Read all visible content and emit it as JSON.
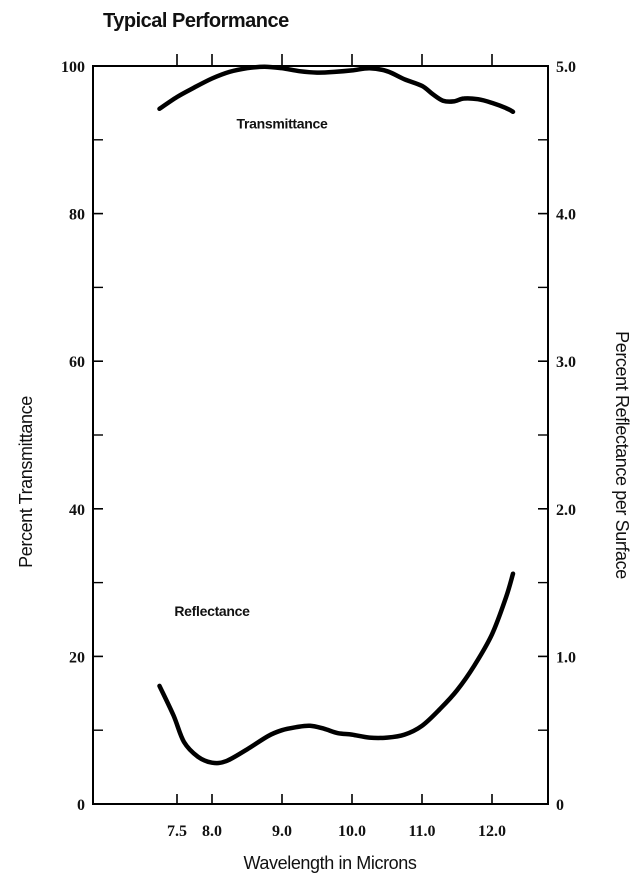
{
  "chart_data": {
    "type": "line",
    "title": "Typical Performance",
    "xlabel": "Wavelength in Microns",
    "ylabel": "Percent Transmittance",
    "y2label": "Percent Reflectance per Surface",
    "xlim": [
      7.2,
      12.35
    ],
    "ylim": [
      0,
      100
    ],
    "y2lim": [
      0,
      5.0
    ],
    "x_ticks": [
      7.5,
      8.0,
      9.0,
      10.0,
      11.0,
      12.0
    ],
    "x_tick_labels": [
      "7.5",
      "8.0",
      "9.0",
      "10.0",
      "11.0",
      "12.0"
    ],
    "y_ticks": [
      0,
      20,
      40,
      60,
      80,
      100
    ],
    "y_tick_labels": [
      "0",
      "20",
      "40",
      "60",
      "80",
      "100"
    ],
    "y2_ticks": [
      0,
      1.0,
      2.0,
      3.0,
      4.0,
      5.0
    ],
    "y2_tick_labels": [
      "0",
      "1.0",
      "2.0",
      "3.0",
      "4.0",
      "5.0"
    ],
    "grid": false,
    "legend": "none",
    "series": [
      {
        "name": "Transmittance",
        "axis": "left",
        "color": "#000000",
        "x": [
          7.25,
          7.5,
          7.75,
          8.0,
          8.25,
          8.5,
          8.75,
          9.0,
          9.25,
          9.5,
          9.75,
          10.0,
          10.25,
          10.5,
          10.75,
          11.0,
          11.15,
          11.3,
          11.45,
          11.6,
          11.8,
          12.0,
          12.2,
          12.3
        ],
        "y": [
          94.2,
          95.8,
          97.1,
          98.3,
          99.2,
          99.7,
          99.9,
          99.7,
          99.3,
          99.1,
          99.2,
          99.4,
          99.7,
          99.3,
          98.2,
          97.3,
          96.2,
          95.3,
          95.2,
          95.6,
          95.5,
          95.0,
          94.3,
          93.8
        ]
      },
      {
        "name": "Reflectance",
        "axis": "right",
        "color": "#000000",
        "x": [
          7.25,
          7.45,
          7.6,
          7.8,
          8.0,
          8.2,
          8.5,
          8.8,
          9.0,
          9.2,
          9.4,
          9.6,
          9.8,
          10.0,
          10.25,
          10.5,
          10.75,
          11.0,
          11.25,
          11.5,
          11.75,
          12.0,
          12.2,
          12.3
        ],
        "y": [
          0.8,
          0.6,
          0.42,
          0.32,
          0.28,
          0.29,
          0.37,
          0.46,
          0.5,
          0.52,
          0.53,
          0.51,
          0.48,
          0.47,
          0.45,
          0.45,
          0.47,
          0.53,
          0.64,
          0.77,
          0.94,
          1.15,
          1.4,
          1.56
        ]
      }
    ],
    "annotations": [
      {
        "text": "Transmittance",
        "x": 9.0,
        "y": 91.5
      },
      {
        "text": "Reflectance",
        "x": 8.0,
        "y": 25.5
      }
    ]
  }
}
